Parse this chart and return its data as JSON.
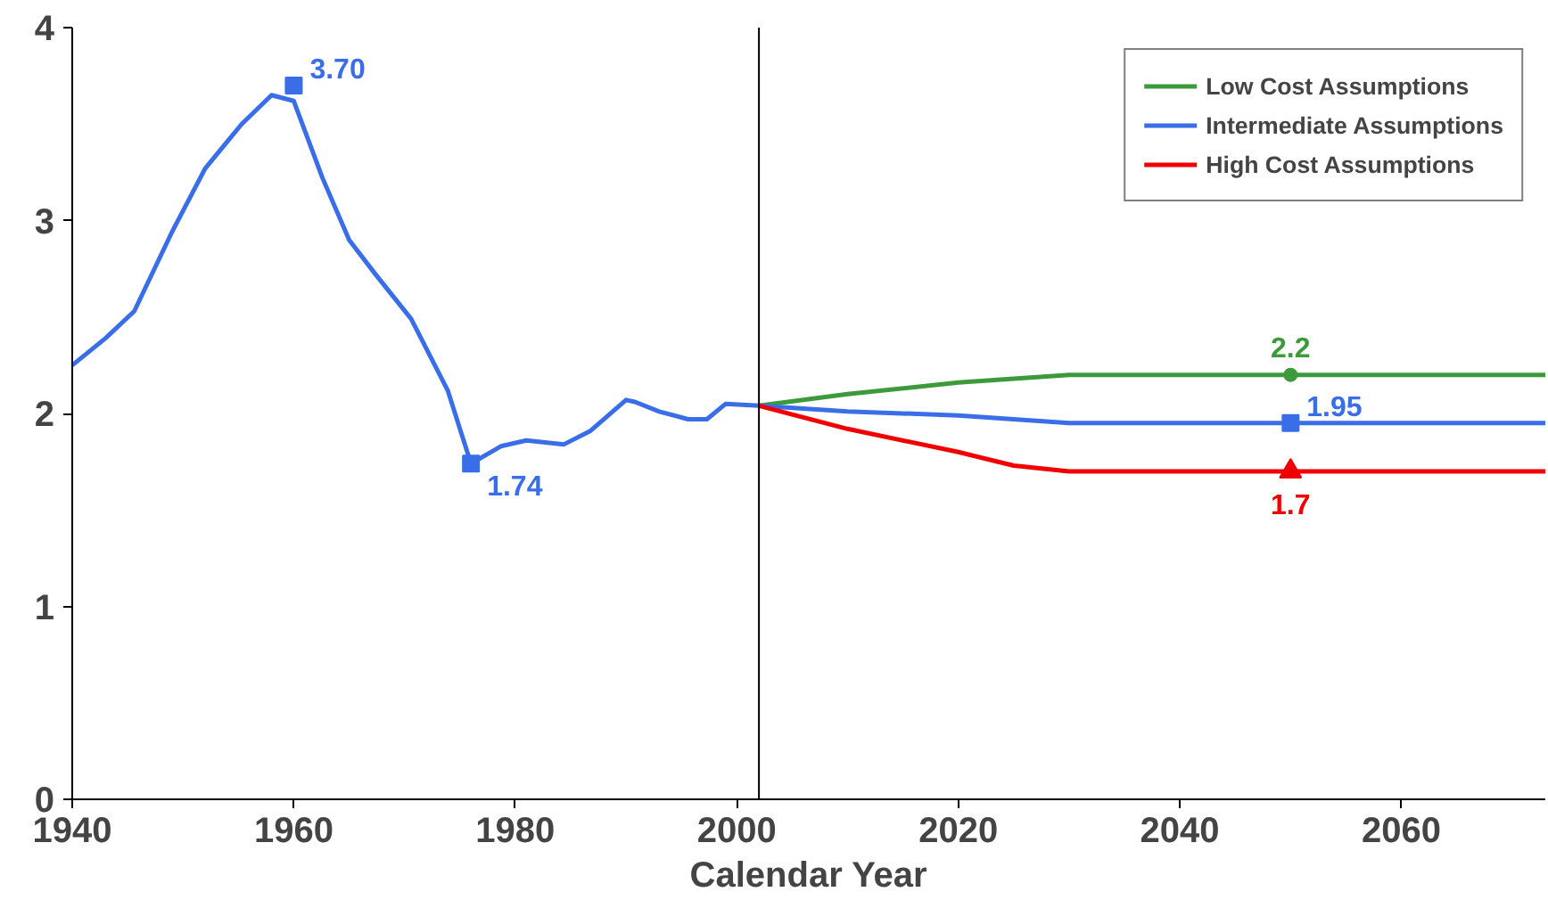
{
  "chart_data": {
    "type": "line",
    "xlabel": "Calendar Year",
    "xlim": [
      1940,
      2073
    ],
    "ylim": [
      0,
      4
    ],
    "xticks": [
      1940,
      1960,
      1980,
      2000,
      2020,
      2040,
      2060
    ],
    "yticks": [
      0,
      1,
      2,
      3,
      4
    ],
    "grid": false,
    "legend": "top right",
    "marker": "none",
    "line_style": "solid",
    "ref_lines": [
      {
        "axis": "x",
        "value": 2002,
        "label": null,
        "color": "#000000"
      }
    ],
    "series": [
      {
        "name": "Low Cost Assumptions",
        "color": "#3c9a3c",
        "x": [
          2002,
          2010,
          2020,
          2030,
          2073
        ],
        "values": [
          2.04,
          2.1,
          2.16,
          2.2,
          2.2
        ]
      },
      {
        "name": "Intermediate Assumptions",
        "color": "#3a6ee8",
        "x": [
          1940,
          1943,
          1945.6,
          1949,
          1952,
          1955.3,
          1958,
          1960,
          1962.6,
          1965,
          1967.4,
          1970.6,
          1973.9,
          1976,
          1978.7,
          1981,
          1984.4,
          1986.8,
          1990,
          1990.8,
          1993,
          1995.6,
          1997.3,
          1999,
          2002,
          2010,
          2020,
          2030,
          2073
        ],
        "values": [
          2.25,
          2.39,
          2.53,
          2.94,
          3.27,
          3.5,
          3.65,
          3.62,
          3.22,
          2.9,
          2.72,
          2.49,
          2.12,
          1.74,
          1.83,
          1.86,
          1.84,
          1.91,
          2.07,
          2.06,
          2.01,
          1.97,
          1.97,
          2.05,
          2.04,
          2.01,
          1.99,
          1.95,
          1.95
        ]
      },
      {
        "name": "High Cost Assumptions",
        "color": "#f00000",
        "x": [
          2002,
          2010,
          2020,
          2025,
          2030,
          2073
        ],
        "values": [
          2.04,
          1.92,
          1.8,
          1.73,
          1.7,
          1.7
        ]
      },
      {
        "type": "scatter",
        "marker": "square",
        "color": "#3a6ee8",
        "x": [
          1960,
          1976,
          2050
        ],
        "values": [
          3.7,
          1.74,
          1.95
        ],
        "value_labels": [
          "3.70",
          "1.74",
          "1.95"
        ]
      },
      {
        "type": "scatter",
        "marker": "circle",
        "color": "#3c9a3c",
        "x": [
          2050
        ],
        "values": [
          2.2
        ],
        "value_labels": [
          "2.2"
        ]
      },
      {
        "type": "scatter",
        "marker": "triangle",
        "color": "#f00000",
        "x": [
          2050
        ],
        "values": [
          1.7
        ],
        "value_labels": [
          "1.7"
        ]
      }
    ]
  }
}
